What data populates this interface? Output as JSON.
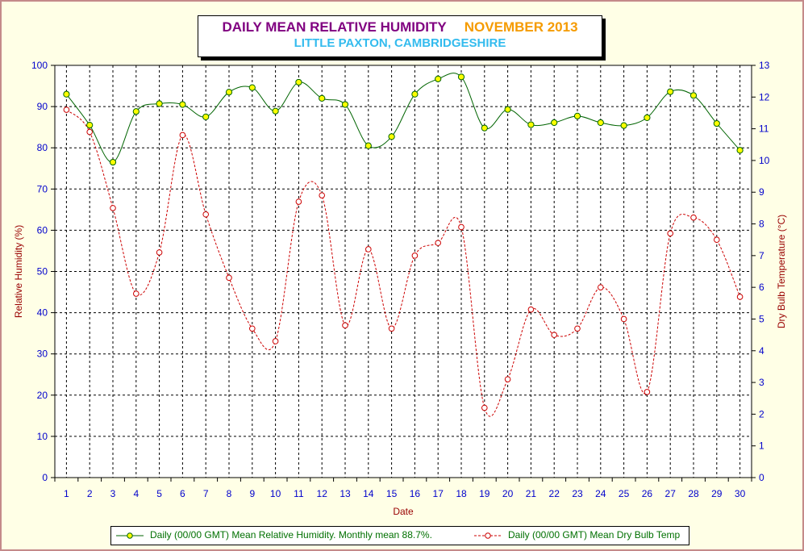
{
  "title": {
    "main": "DAILY MEAN RELATIVE HUMIDITY",
    "month": "NOVEMBER 2013",
    "location": "LITTLE PAXTON, CAMBRIDGESHIRE"
  },
  "colors": {
    "background": "#ffffe6",
    "humidity_line": "#006400",
    "humidity_marker": "#ffff00",
    "temp_line": "#cc0000",
    "left_axis_text": "#0000cc",
    "right_axis_text": "#0000cc",
    "axis_label_color": "#990000"
  },
  "chart_data": {
    "type": "line",
    "xlabel": "Date",
    "ylabel": "Relative Humidity (%)",
    "y2label": "Dry Bulb Temperature (°C)",
    "ylim": [
      0,
      100
    ],
    "y2lim": [
      0,
      13
    ],
    "yticks": [
      0,
      10,
      20,
      30,
      40,
      50,
      60,
      70,
      80,
      90,
      100
    ],
    "y2ticks": [
      0,
      1,
      2,
      3,
      4,
      5,
      6,
      7,
      8,
      9,
      10,
      11,
      12,
      13
    ],
    "grid": true,
    "legend_position": "bottom",
    "x": [
      1,
      2,
      3,
      4,
      5,
      6,
      7,
      8,
      9,
      10,
      11,
      12,
      13,
      14,
      15,
      16,
      17,
      18,
      19,
      20,
      21,
      22,
      23,
      24,
      25,
      26,
      27,
      28,
      29,
      30
    ],
    "series": [
      {
        "name": "Daily (00/00 GMT) Mean Relative Humidity. Monthly mean 88.7%.",
        "axis": "left",
        "style": "solid",
        "values": [
          93.0,
          85.5,
          76.5,
          88.8,
          90.7,
          90.5,
          87.5,
          93.5,
          94.6,
          88.9,
          95.9,
          92.0,
          90.5,
          80.5,
          82.7,
          93.0,
          96.7,
          97.2,
          84.8,
          89.3,
          85.6,
          86.1,
          87.7,
          86.1,
          85.4,
          87.3,
          93.6,
          92.7,
          85.9,
          79.4
        ]
      },
      {
        "name": "Daily (00/00 GMT) Mean Dry Bulb Temp",
        "axis": "right",
        "style": "dashed",
        "values": [
          11.6,
          10.9,
          8.5,
          5.8,
          7.1,
          10.8,
          8.3,
          6.3,
          4.7,
          4.3,
          8.7,
          8.9,
          4.8,
          7.2,
          4.7,
          7.0,
          7.4,
          7.9,
          2.2,
          3.1,
          5.3,
          4.5,
          4.7,
          6.0,
          5.0,
          2.7,
          7.7,
          8.2,
          7.5,
          5.7
        ]
      }
    ]
  }
}
